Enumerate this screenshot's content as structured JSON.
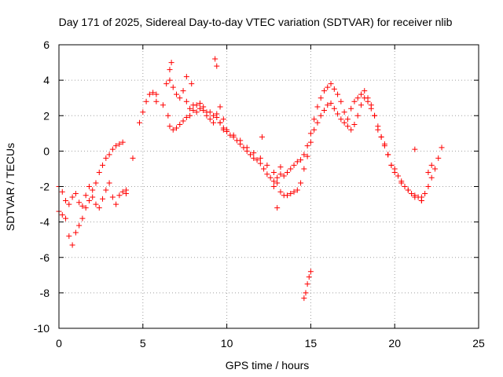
{
  "chart_data": {
    "type": "scatter",
    "title": "Day 171 of 2025, Sidereal Day-to-day VTEC variation (SDTVAR) for receiver nlib",
    "xlabel": "GPS time / hours",
    "ylabel": "SDTVAR / TECUs",
    "xlim": [
      0,
      25
    ],
    "ylim": [
      -10,
      6
    ],
    "xticks": [
      0,
      5,
      10,
      15,
      20,
      25
    ],
    "xtick_labels": [
      "0",
      "5",
      "10",
      "15",
      "20",
      "25"
    ],
    "yticks": [
      -10,
      -8,
      -6,
      -4,
      -2,
      0,
      2,
      4,
      6
    ],
    "ytick_labels": [
      "-10",
      "-8",
      "-6",
      "-4",
      "-2",
      "0",
      "2",
      "4",
      "6"
    ],
    "grid": true,
    "marker": "+",
    "color": "#ff0000",
    "series": [
      {
        "name": "main",
        "x": [
          0.0,
          0.2,
          0.4,
          0.6,
          0.8,
          1.0,
          1.2,
          1.4,
          1.6,
          1.8,
          2.0,
          2.2,
          2.4,
          2.6,
          2.8,
          3.0,
          3.2,
          3.4,
          3.6,
          3.8,
          4.0,
          4.2,
          4.4,
          4.6,
          4.8,
          5.0,
          5.2,
          5.4,
          5.6,
          5.8,
          6.0,
          6.2,
          6.4,
          6.6,
          6.8,
          7.0,
          7.2,
          7.4,
          7.6,
          7.8,
          8.0,
          8.2,
          8.4,
          8.6,
          8.8,
          9.0,
          9.2,
          9.4,
          9.6,
          9.8,
          10.0,
          10.2,
          10.4,
          10.6,
          10.8,
          11.0,
          11.2,
          11.4,
          11.6,
          11.8,
          12.0,
          12.2,
          12.4,
          12.6,
          12.8,
          13.0,
          13.2,
          13.4,
          13.6,
          13.8,
          14.0,
          14.2,
          14.4,
          14.6,
          14.8,
          15.0,
          15.2,
          15.4,
          15.6,
          15.8,
          16.0,
          16.2,
          16.4,
          16.6,
          16.8,
          17.0,
          17.2,
          17.4,
          17.6,
          17.8,
          18.0,
          18.2,
          18.4,
          18.6,
          18.8,
          19.0,
          19.2,
          19.4,
          19.6,
          19.8,
          20.0,
          20.2,
          20.4,
          20.6,
          20.8,
          21.0,
          21.2,
          21.4,
          21.6,
          21.8,
          22.0,
          22.2,
          22.4,
          22.6,
          22.8
        ],
        "y": [
          -2.0,
          -2.3,
          -2.8,
          -3.0,
          -2.6,
          -2.4,
          -2.9,
          -3.1,
          -2.5,
          -2.0,
          -2.2,
          -1.8,
          -1.2,
          -0.8,
          -0.4,
          -0.2,
          0.1,
          0.3,
          0.4,
          0.5,
          null,
          null,
          null,
          null,
          1.6,
          2.2,
          2.8,
          3.2,
          3.3,
          3.2,
          null,
          null,
          3.8,
          4.0,
          3.6,
          3.2,
          3.0,
          3.4,
          2.8,
          2.4,
          2.6,
          2.2,
          2.4,
          2.3,
          2.0,
          2.2,
          2.0,
          2.1,
          1.6,
          1.3,
          1.1,
          0.9,
          0.8,
          0.6,
          0.4,
          0.2,
          0.0,
          -0.2,
          -0.4,
          -0.5,
          -0.7,
          -1.0,
          -1.3,
          -1.5,
          -1.7,
          -1.5,
          -1.3,
          -1.4,
          -1.2,
          -1.0,
          -0.8,
          -0.6,
          -0.5,
          -0.2,
          0.3,
          1.0,
          1.8,
          2.5,
          3.0,
          3.4,
          3.6,
          3.8,
          3.5,
          3.2,
          2.8,
          2.2,
          1.8,
          2.4,
          2.8,
          3.0,
          3.2,
          3.4,
          3.0,
          2.6,
          2.0,
          1.4,
          0.8,
          0.3,
          -0.2,
          -0.8,
          -1.0,
          -1.4,
          -1.7,
          -2.0,
          -2.2,
          -2.4,
          -2.5,
          -2.6,
          -2.8,
          -2.4,
          -2.0,
          -1.5,
          -1.0,
          -0.4,
          0.2
        ]
      },
      {
        "name": "secondary",
        "x": [
          0.0,
          0.2,
          0.4,
          0.6,
          0.8,
          1.0,
          1.2,
          1.4,
          1.6,
          1.8,
          2.0,
          2.2,
          2.4,
          2.6,
          2.8,
          3.0,
          3.2,
          3.4,
          3.6,
          3.8,
          4.0,
          6.6,
          6.8,
          7.0,
          7.2,
          7.4,
          7.6,
          7.8,
          8.0,
          8.2,
          8.4,
          8.6,
          8.8,
          9.0,
          9.2,
          9.4,
          9.6,
          9.8,
          10.0,
          10.4,
          10.8,
          11.2,
          11.6,
          12.0,
          12.4,
          12.8,
          13.0,
          13.2,
          13.4,
          13.6,
          13.8,
          14.0,
          14.2,
          14.4,
          14.6,
          14.8,
          15.0,
          15.2,
          15.4,
          15.6,
          15.8,
          16.0,
          16.2,
          16.4,
          16.6,
          16.8,
          17.0,
          17.2,
          17.4,
          17.6,
          17.8,
          18.0,
          18.2,
          18.4,
          18.6,
          18.8,
          19.0,
          19.2,
          19.4,
          19.6,
          19.8,
          20.0,
          20.4,
          20.8,
          21.2,
          21.6
        ],
        "y": [
          -3.4,
          -3.6,
          -3.8,
          -4.8,
          -5.3,
          -4.6,
          -4.2,
          -3.8,
          -3.2,
          -2.8,
          -2.6,
          -3.0,
          -3.2,
          -2.7,
          -2.2,
          -1.8,
          -2.6,
          -3.0,
          -2.5,
          -2.3,
          -2.4,
          1.4,
          1.2,
          1.3,
          1.5,
          1.7,
          1.9,
          2.0,
          2.3,
          2.6,
          2.7,
          2.5,
          2.2,
          1.8,
          1.6,
          1.9,
          1.6,
          1.2,
          1.2,
          0.9,
          0.6,
          0.2,
          -0.1,
          -0.4,
          -0.8,
          -1.2,
          -1.8,
          -2.3,
          -2.5,
          -2.5,
          -2.4,
          -2.3,
          -2.2,
          -1.8,
          -1.0,
          -0.3,
          0.5,
          1.2,
          1.6,
          2.0,
          2.3,
          2.6,
          2.7,
          2.4,
          2.1,
          1.8,
          1.6,
          1.4,
          1.2,
          1.5,
          2.0,
          2.6,
          3.0,
          2.8,
          2.4,
          2.0,
          1.2,
          0.8,
          0.4,
          -0.2,
          -0.8,
          -1.2,
          -1.8,
          -2.2,
          -2.6,
          -2.8
        ]
      },
      {
        "name": "outliers",
        "x": [
          4.0,
          4.4,
          5.8,
          6.2,
          6.5,
          6.6,
          6.7,
          7.6,
          7.9,
          9.3,
          9.4,
          9.6,
          9.8,
          12.1,
          12.8,
          13.0,
          13.2,
          14.6,
          14.7,
          14.8,
          14.9,
          15.0,
          21.2,
          21.6,
          22.0,
          22.2
        ],
        "y": [
          -2.2,
          -0.4,
          2.8,
          2.6,
          2.0,
          4.6,
          5.0,
          4.2,
          3.8,
          5.2,
          4.8,
          2.5,
          1.8,
          0.8,
          -2.0,
          -3.2,
          -0.9,
          -8.3,
          -8.0,
          -7.5,
          -7.1,
          -6.8,
          0.1,
          -2.6,
          -1.2,
          -0.8
        ]
      }
    ]
  }
}
